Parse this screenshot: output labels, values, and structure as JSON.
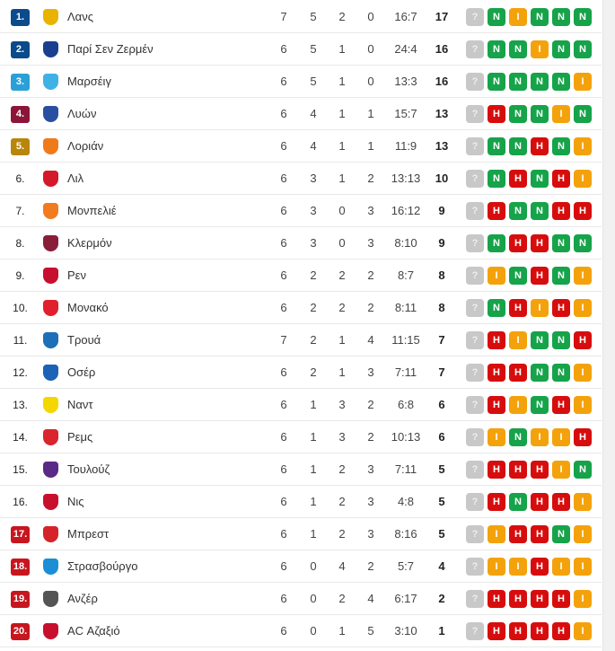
{
  "unknown_label": "?",
  "rank_colors": {
    "ucl": "#0b4a8b",
    "ucl_q": "#2a9fd8",
    "uel": "#8c1638",
    "uecl": "#b8860b",
    "playoff": "#c7161e",
    "releg": "#c7161e",
    "none": "transparent"
  },
  "form_colors": {
    "N": "#16a34a",
    "H": "#d70d0d",
    "I": "#f4a20b",
    "unknown": "#c8c8c8"
  },
  "rows": [
    {
      "rank": "1.",
      "zone": "ucl",
      "team": "Λανς",
      "logo": "#e8b400",
      "p": "7",
      "w": "5",
      "d": "2",
      "l": "0",
      "goals": "16:7",
      "pts": "17",
      "form": [
        "N",
        "I",
        "N",
        "N",
        "N"
      ]
    },
    {
      "rank": "2.",
      "zone": "ucl",
      "team": "Παρί Σεν Ζερμέν",
      "logo": "#1a3f8f",
      "p": "6",
      "w": "5",
      "d": "1",
      "l": "0",
      "goals": "24:4",
      "pts": "16",
      "form": [
        "N",
        "N",
        "I",
        "N",
        "N"
      ]
    },
    {
      "rank": "3.",
      "zone": "ucl_q",
      "team": "Μαρσέιγ",
      "logo": "#3fb2e5",
      "p": "6",
      "w": "5",
      "d": "1",
      "l": "0",
      "goals": "13:3",
      "pts": "16",
      "form": [
        "N",
        "N",
        "N",
        "N",
        "I"
      ]
    },
    {
      "rank": "4.",
      "zone": "uel",
      "team": "Λυών",
      "logo": "#2b4fa0",
      "p": "6",
      "w": "4",
      "d": "1",
      "l": "1",
      "goals": "15:7",
      "pts": "13",
      "form": [
        "H",
        "N",
        "N",
        "I",
        "N"
      ]
    },
    {
      "rank": "5.",
      "zone": "uecl",
      "team": "Λοριάν",
      "logo": "#f07a1a",
      "p": "6",
      "w": "4",
      "d": "1",
      "l": "1",
      "goals": "11:9",
      "pts": "13",
      "form": [
        "N",
        "N",
        "H",
        "N",
        "I"
      ]
    },
    {
      "rank": "6.",
      "zone": "none",
      "team": "Λιλ",
      "logo": "#d4192b",
      "p": "6",
      "w": "3",
      "d": "1",
      "l": "2",
      "goals": "13:13",
      "pts": "10",
      "form": [
        "N",
        "H",
        "N",
        "H",
        "I"
      ]
    },
    {
      "rank": "7.",
      "zone": "none",
      "team": "Μονπελιέ",
      "logo": "#f27b20",
      "p": "6",
      "w": "3",
      "d": "0",
      "l": "3",
      "goals": "16:12",
      "pts": "9",
      "form": [
        "H",
        "N",
        "N",
        "H",
        "H"
      ]
    },
    {
      "rank": "8.",
      "zone": "none",
      "team": "Κλερμόν",
      "logo": "#8a1e3a",
      "p": "6",
      "w": "3",
      "d": "0",
      "l": "3",
      "goals": "8:10",
      "pts": "9",
      "form": [
        "N",
        "H",
        "H",
        "N",
        "N"
      ]
    },
    {
      "rank": "9.",
      "zone": "none",
      "team": "Ρεν",
      "logo": "#c8102e",
      "p": "6",
      "w": "2",
      "d": "2",
      "l": "2",
      "goals": "8:7",
      "pts": "8",
      "form": [
        "I",
        "N",
        "H",
        "N",
        "I"
      ]
    },
    {
      "rank": "10.",
      "zone": "none",
      "team": "Μονακό",
      "logo": "#e2202d",
      "p": "6",
      "w": "2",
      "d": "2",
      "l": "2",
      "goals": "8:11",
      "pts": "8",
      "form": [
        "N",
        "H",
        "I",
        "H",
        "I"
      ]
    },
    {
      "rank": "11.",
      "zone": "none",
      "team": "Τρουά",
      "logo": "#1d6fb8",
      "p": "7",
      "w": "2",
      "d": "1",
      "l": "4",
      "goals": "11:15",
      "pts": "7",
      "form": [
        "H",
        "I",
        "N",
        "N",
        "H"
      ]
    },
    {
      "rank": "12.",
      "zone": "none",
      "team": "Οσέρ",
      "logo": "#1c63b7",
      "p": "6",
      "w": "2",
      "d": "1",
      "l": "3",
      "goals": "7:11",
      "pts": "7",
      "form": [
        "H",
        "H",
        "N",
        "N",
        "I"
      ]
    },
    {
      "rank": "13.",
      "zone": "none",
      "team": "Ναντ",
      "logo": "#f4d600",
      "p": "6",
      "w": "1",
      "d": "3",
      "l": "2",
      "goals": "6:8",
      "pts": "6",
      "form": [
        "H",
        "I",
        "N",
        "H",
        "I"
      ]
    },
    {
      "rank": "14.",
      "zone": "none",
      "team": "Ρεμς",
      "logo": "#d9252b",
      "p": "6",
      "w": "1",
      "d": "3",
      "l": "2",
      "goals": "10:13",
      "pts": "6",
      "form": [
        "I",
        "N",
        "I",
        "I",
        "H"
      ]
    },
    {
      "rank": "15.",
      "zone": "none",
      "team": "Τουλούζ",
      "logo": "#5b2a86",
      "p": "6",
      "w": "1",
      "d": "2",
      "l": "3",
      "goals": "7:11",
      "pts": "5",
      "form": [
        "H",
        "H",
        "H",
        "I",
        "N"
      ]
    },
    {
      "rank": "16.",
      "zone": "none",
      "team": "Νις",
      "logo": "#c8102e",
      "p": "6",
      "w": "1",
      "d": "2",
      "l": "3",
      "goals": "4:8",
      "pts": "5",
      "form": [
        "H",
        "N",
        "H",
        "H",
        "I"
      ]
    },
    {
      "rank": "17.",
      "zone": "playoff",
      "team": "Μπρεστ",
      "logo": "#d4232b",
      "p": "6",
      "w": "1",
      "d": "2",
      "l": "3",
      "goals": "8:16",
      "pts": "5",
      "form": [
        "I",
        "H",
        "H",
        "N",
        "I"
      ]
    },
    {
      "rank": "18.",
      "zone": "releg",
      "team": "Στρασβούργο",
      "logo": "#1a8fd6",
      "p": "6",
      "w": "0",
      "d": "4",
      "l": "2",
      "goals": "5:7",
      "pts": "4",
      "form": [
        "I",
        "I",
        "H",
        "I",
        "I"
      ]
    },
    {
      "rank": "19.",
      "zone": "releg",
      "team": "Ανζέρ",
      "logo": "#555555",
      "p": "6",
      "w": "0",
      "d": "2",
      "l": "4",
      "goals": "6:17",
      "pts": "2",
      "form": [
        "H",
        "H",
        "H",
        "H",
        "I"
      ]
    },
    {
      "rank": "20.",
      "zone": "releg",
      "team": "AC Αζαξιό",
      "logo": "#c8102e",
      "p": "6",
      "w": "0",
      "d": "1",
      "l": "5",
      "goals": "3:10",
      "pts": "1",
      "form": [
        "H",
        "H",
        "H",
        "H",
        "I"
      ]
    }
  ]
}
